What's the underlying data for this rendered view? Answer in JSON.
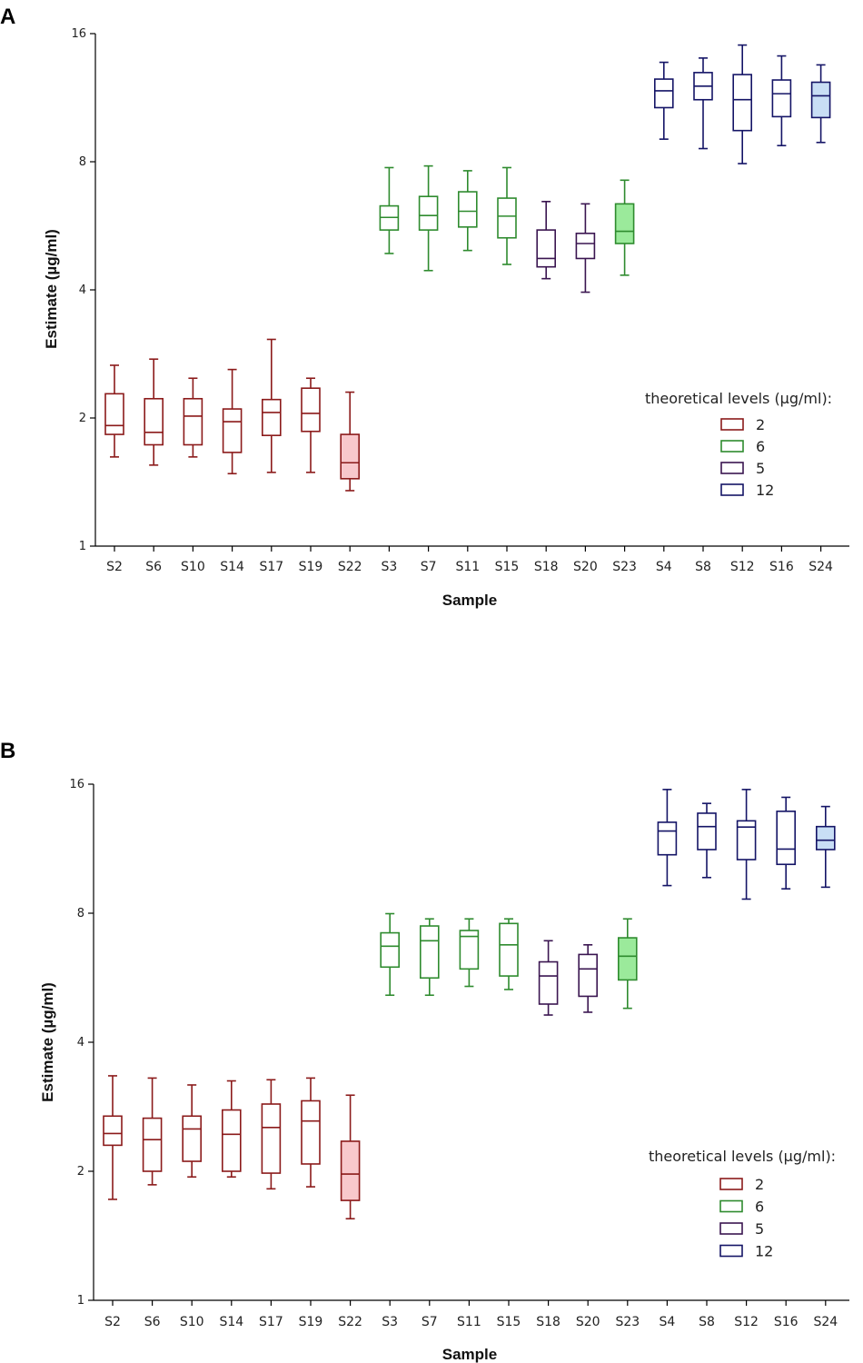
{
  "chart_data": [
    {
      "panel": "A",
      "type": "boxplot",
      "xlabel": "Sample",
      "ylabel": "Estimate (µg/ml)",
      "yscale": "log2",
      "ylim": [
        1,
        16
      ],
      "yticks": [
        1,
        2,
        4,
        8,
        16
      ],
      "legend": {
        "title": "theoretical levels (µg/ml):",
        "entries": [
          {
            "label": "2",
            "color": "#8B1A1A"
          },
          {
            "label": "6",
            "color": "#2E8B2E"
          },
          {
            "label": "5",
            "color": "#3A1550"
          },
          {
            "label": "12",
            "color": "#141466"
          }
        ]
      },
      "boxes": [
        {
          "sample": "S2",
          "group": "2",
          "min": 1.62,
          "q1": 1.83,
          "median": 1.92,
          "q3": 2.28,
          "max": 2.66,
          "filled": false
        },
        {
          "sample": "S6",
          "group": "2",
          "min": 1.55,
          "q1": 1.73,
          "median": 1.85,
          "q3": 2.22,
          "max": 2.75,
          "filled": false
        },
        {
          "sample": "S10",
          "group": "2",
          "min": 1.62,
          "q1": 1.73,
          "median": 2.02,
          "q3": 2.22,
          "max": 2.48,
          "filled": false
        },
        {
          "sample": "S14",
          "group": "2",
          "min": 1.48,
          "q1": 1.66,
          "median": 1.96,
          "q3": 2.1,
          "max": 2.6,
          "filled": false
        },
        {
          "sample": "S17",
          "group": "2",
          "min": 1.49,
          "q1": 1.82,
          "median": 2.06,
          "q3": 2.21,
          "max": 3.06,
          "filled": false
        },
        {
          "sample": "S19",
          "group": "2",
          "min": 1.49,
          "q1": 1.86,
          "median": 2.05,
          "q3": 2.35,
          "max": 2.48,
          "filled": false
        },
        {
          "sample": "S22",
          "group": "2",
          "min": 1.35,
          "q1": 1.44,
          "median": 1.57,
          "q3": 1.83,
          "max": 2.3,
          "filled": true
        },
        {
          "sample": "S3",
          "group": "6",
          "min": 4.87,
          "q1": 5.53,
          "median": 5.92,
          "q3": 6.3,
          "max": 7.75,
          "filled": false
        },
        {
          "sample": "S7",
          "group": "6",
          "min": 4.44,
          "q1": 5.53,
          "median": 5.98,
          "q3": 6.63,
          "max": 7.82,
          "filled": false
        },
        {
          "sample": "S11",
          "group": "6",
          "min": 4.95,
          "q1": 5.62,
          "median": 6.12,
          "q3": 6.8,
          "max": 7.62,
          "filled": false
        },
        {
          "sample": "S15",
          "group": "6",
          "min": 4.59,
          "q1": 5.3,
          "median": 5.96,
          "q3": 6.57,
          "max": 7.75,
          "filled": false
        },
        {
          "sample": "S18",
          "group": "5",
          "min": 4.25,
          "q1": 4.53,
          "median": 4.74,
          "q3": 5.53,
          "max": 6.45,
          "filled": false
        },
        {
          "sample": "S20",
          "group": "5",
          "min": 3.95,
          "q1": 4.74,
          "median": 5.14,
          "q3": 5.43,
          "max": 6.37,
          "filled": false
        },
        {
          "sample": "S23",
          "group": "6",
          "min": 4.33,
          "q1": 5.14,
          "median": 5.49,
          "q3": 6.37,
          "max": 7.24,
          "filled": true
        },
        {
          "sample": "S4",
          "group": "12",
          "min": 9.04,
          "q1": 10.72,
          "median": 11.74,
          "q3": 12.51,
          "max": 13.7,
          "filled": false
        },
        {
          "sample": "S8",
          "group": "12",
          "min": 8.59,
          "q1": 11.19,
          "median": 12.04,
          "q3": 12.96,
          "max": 14.02,
          "filled": false
        },
        {
          "sample": "S12",
          "group": "12",
          "min": 7.92,
          "q1": 9.47,
          "median": 11.19,
          "q3": 12.82,
          "max": 15.04,
          "filled": false
        },
        {
          "sample": "S16",
          "group": "12",
          "min": 8.73,
          "q1": 10.21,
          "median": 11.56,
          "q3": 12.45,
          "max": 14.18,
          "filled": false
        },
        {
          "sample": "S24",
          "group": "12",
          "min": 8.88,
          "q1": 10.16,
          "median": 11.43,
          "q3": 12.3,
          "max": 13.51,
          "filled": true
        }
      ]
    },
    {
      "panel": "B",
      "type": "boxplot",
      "xlabel": "Sample",
      "ylabel": "Estimate (µg/ml)",
      "yscale": "log2",
      "ylim": [
        1,
        16
      ],
      "yticks": [
        1,
        2,
        4,
        8,
        16
      ],
      "legend": {
        "title": "theoretical levels (µg/ml):",
        "entries": [
          {
            "label": "2",
            "color": "#8B1A1A"
          },
          {
            "label": "6",
            "color": "#2E8B2E"
          },
          {
            "label": "5",
            "color": "#3A1550"
          },
          {
            "label": "12",
            "color": "#141466"
          }
        ]
      },
      "boxes": [
        {
          "sample": "S2",
          "group": "2",
          "min": 1.72,
          "q1": 2.3,
          "median": 2.45,
          "q3": 2.69,
          "max": 3.34,
          "filled": false
        },
        {
          "sample": "S6",
          "group": "2",
          "min": 1.86,
          "q1": 2.0,
          "median": 2.37,
          "q3": 2.66,
          "max": 3.3,
          "filled": false
        },
        {
          "sample": "S10",
          "group": "2",
          "min": 1.94,
          "q1": 2.11,
          "median": 2.51,
          "q3": 2.69,
          "max": 3.18,
          "filled": false
        },
        {
          "sample": "S14",
          "group": "2",
          "min": 1.94,
          "q1": 2.0,
          "median": 2.44,
          "q3": 2.78,
          "max": 3.25,
          "filled": false
        },
        {
          "sample": "S17",
          "group": "2",
          "min": 1.82,
          "q1": 1.98,
          "median": 2.53,
          "q3": 2.87,
          "max": 3.27,
          "filled": false
        },
        {
          "sample": "S19",
          "group": "2",
          "min": 1.84,
          "q1": 2.08,
          "median": 2.62,
          "q3": 2.92,
          "max": 3.3,
          "filled": false
        },
        {
          "sample": "S22",
          "group": "2",
          "min": 1.55,
          "q1": 1.71,
          "median": 1.97,
          "q3": 2.35,
          "max": 3.01,
          "filled": true
        },
        {
          "sample": "S3",
          "group": "6",
          "min": 5.15,
          "q1": 5.99,
          "median": 6.7,
          "q3": 7.2,
          "max": 7.98,
          "filled": false
        },
        {
          "sample": "S7",
          "group": "6",
          "min": 5.15,
          "q1": 5.65,
          "median": 6.9,
          "q3": 7.47,
          "max": 7.76,
          "filled": false
        },
        {
          "sample": "S11",
          "group": "6",
          "min": 5.4,
          "q1": 5.93,
          "median": 7.06,
          "q3": 7.29,
          "max": 7.76,
          "filled": false
        },
        {
          "sample": "S15",
          "group": "6",
          "min": 5.31,
          "q1": 5.71,
          "median": 6.75,
          "q3": 7.57,
          "max": 7.76,
          "filled": false
        },
        {
          "sample": "S18",
          "group": "5",
          "min": 4.63,
          "q1": 4.91,
          "median": 5.71,
          "q3": 6.16,
          "max": 6.9,
          "filled": false
        },
        {
          "sample": "S20",
          "group": "5",
          "min": 4.7,
          "q1": 5.12,
          "median": 5.93,
          "q3": 6.41,
          "max": 6.75,
          "filled": false
        },
        {
          "sample": "S23",
          "group": "6",
          "min": 4.8,
          "q1": 5.59,
          "median": 6.35,
          "q3": 7.01,
          "max": 7.76,
          "filled": true
        },
        {
          "sample": "S4",
          "group": "12",
          "min": 9.28,
          "q1": 10.95,
          "median": 12.44,
          "q3": 13.04,
          "max": 15.55,
          "filled": false
        },
        {
          "sample": "S8",
          "group": "12",
          "min": 9.69,
          "q1": 11.26,
          "median": 12.74,
          "q3": 13.69,
          "max": 14.43,
          "filled": false
        },
        {
          "sample": "S12",
          "group": "12",
          "min": 8.63,
          "q1": 10.67,
          "median": 12.71,
          "q3": 13.14,
          "max": 15.55,
          "filled": false
        },
        {
          "sample": "S16",
          "group": "12",
          "min": 9.12,
          "q1": 10.4,
          "median": 11.29,
          "q3": 13.83,
          "max": 14.91,
          "filled": false
        },
        {
          "sample": "S24",
          "group": "12",
          "min": 9.2,
          "q1": 11.26,
          "median": 11.84,
          "q3": 12.74,
          "max": 14.19,
          "filled": true
        }
      ]
    }
  ],
  "colors": {
    "2": {
      "stroke": "#8B1A1A",
      "fill": "#F8C8CC"
    },
    "6": {
      "stroke": "#2E8B2E",
      "fill": "#9BEA9B"
    },
    "5": {
      "stroke": "#3A1550",
      "fill": "#E0D0EA"
    },
    "12": {
      "stroke": "#141466",
      "fill": "#C8DEF5"
    }
  }
}
